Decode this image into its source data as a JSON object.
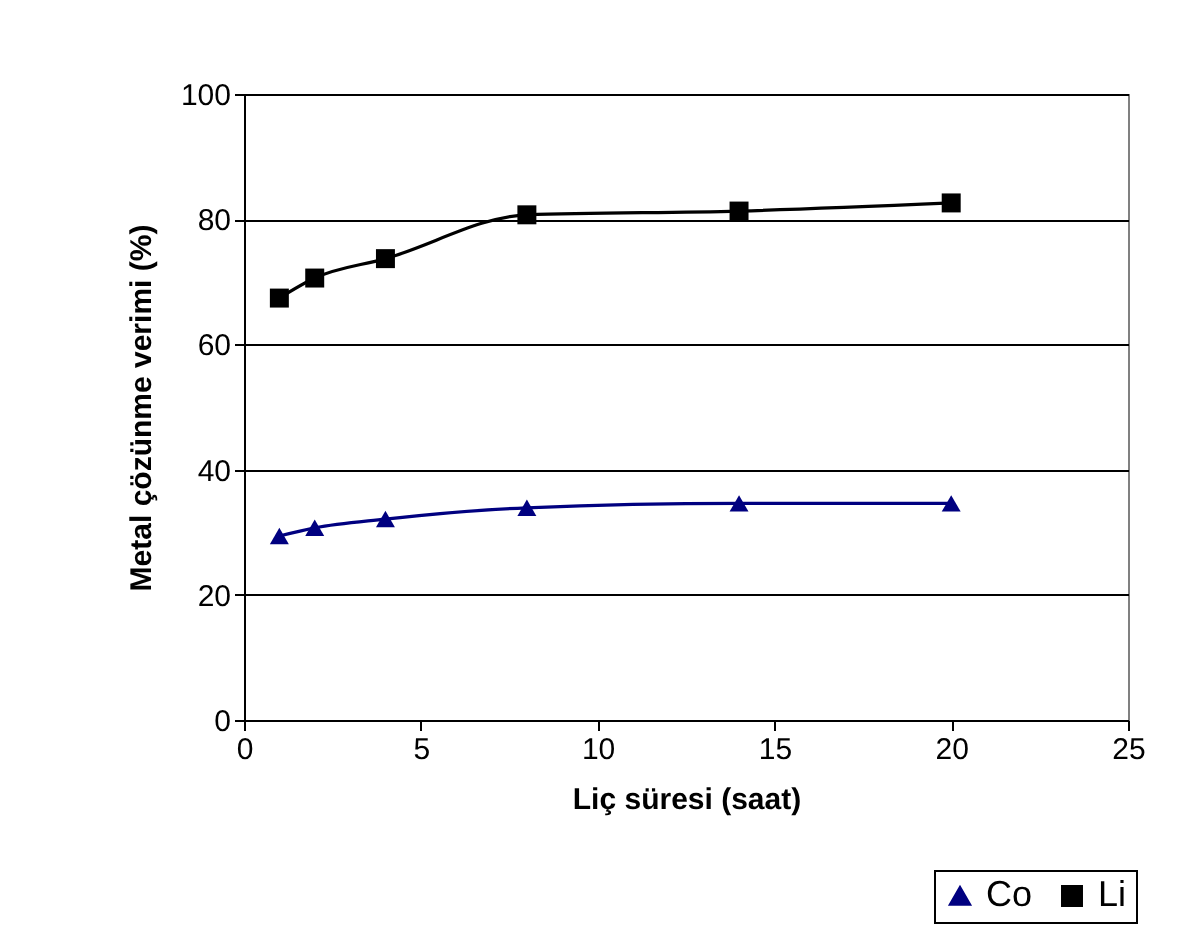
{
  "chart_data": {
    "type": "line",
    "xlabel": "Liç süresi (saat)",
    "ylabel": "Metal çözünme verimi (%)",
    "x": [
      1,
      2,
      4,
      8,
      14,
      20
    ],
    "series": [
      {
        "name": "Co",
        "color": "#000080",
        "marker": "triangle",
        "values": [
          29.4,
          30.7,
          32.1,
          33.9,
          34.6,
          34.6
        ]
      },
      {
        "name": "Li",
        "color": "#000000",
        "marker": "square",
        "values": [
          67.4,
          70.6,
          73.7,
          80.7,
          81.3,
          82.6
        ]
      }
    ],
    "xlim": [
      0,
      25
    ],
    "xticks": [
      0,
      5,
      10,
      15,
      20,
      25
    ],
    "ylim": [
      0,
      100
    ],
    "yticks": [
      0,
      20,
      40,
      60,
      80,
      100
    ],
    "grid": "y",
    "legend": "bottom right"
  }
}
